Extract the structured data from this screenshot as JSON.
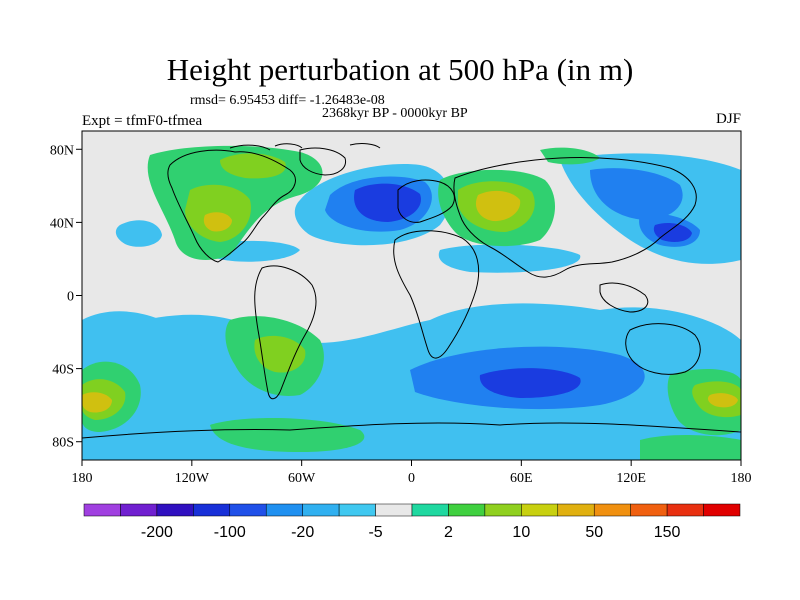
{
  "title": "Height perturbation at 500 hPa (in m)",
  "stats": "rmsd= 6.95453 diff= -1.26483e-08",
  "period": "2368kyr BP - 0000kyr BP",
  "experiment": "Expt = tfmF0-tfmea",
  "season": "DJF",
  "lat_ticks": [
    "80N",
    "40N",
    "0",
    "40S",
    "80S"
  ],
  "lon_ticks": [
    "180",
    "120W",
    "60W",
    "0",
    "60E",
    "120E",
    "180"
  ],
  "colorbar": {
    "colors": [
      "#a040e0",
      "#7020d0",
      "#3010c0",
      "#1830d8",
      "#2050e8",
      "#2090f0",
      "#30b0f0",
      "#40c8f0",
      "#e8e8e8",
      "#20d8a0",
      "#40d040",
      "#90d020",
      "#c8d010",
      "#e0b010",
      "#f09010",
      "#f06010",
      "#e83010",
      "#e00000"
    ],
    "labels": [
      "-200",
      "-100",
      "-20",
      "-5",
      "2",
      "10",
      "50",
      "150"
    ]
  },
  "palette": {
    "neg_deep": "#1a3ce0",
    "neg_mid": "#2080f0",
    "neg_light": "#40c0f0",
    "neutral": "#e8e8e8",
    "pos_light": "#30d070",
    "pos_mid": "#80d020",
    "pos_high": "#d0c010"
  }
}
